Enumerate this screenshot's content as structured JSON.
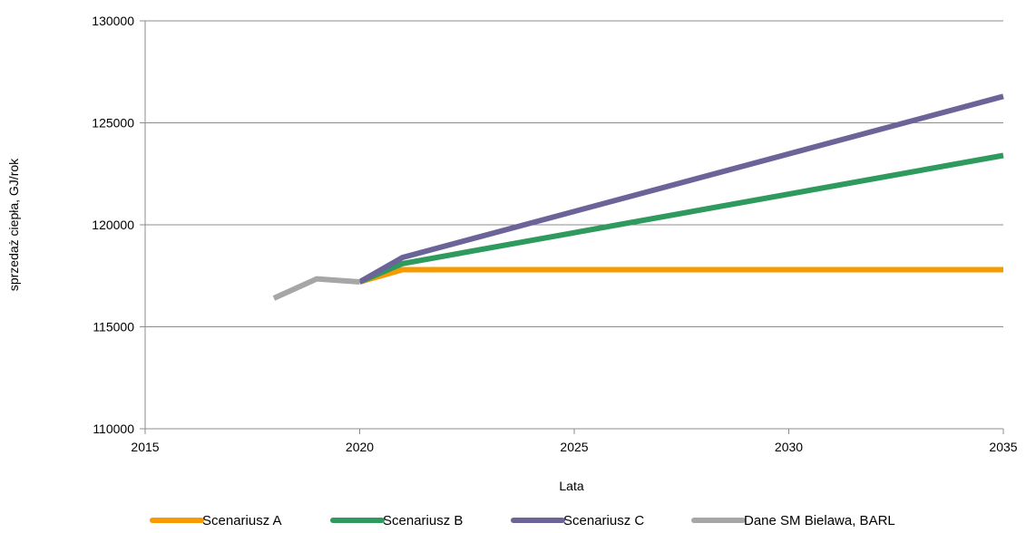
{
  "chart_data": {
    "type": "line",
    "title": "",
    "xlabel": "Lata",
    "ylabel": "sprzedaż ciepła, GJ/rok",
    "xlim": [
      2015,
      2035
    ],
    "ylim": [
      110000,
      130000
    ],
    "xticks": [
      2015,
      2020,
      2025,
      2030,
      2035
    ],
    "yticks": [
      110000,
      115000,
      120000,
      125000,
      130000
    ],
    "grid": "horizontal",
    "legend_position": "bottom",
    "series": [
      {
        "name": "Scenariusz A",
        "color": "#f79a00",
        "x": [
          2020,
          2021,
          2035
        ],
        "y": [
          117200,
          117800,
          117800
        ]
      },
      {
        "name": "Scenariusz B",
        "color": "#2f9a5e",
        "x": [
          2020,
          2021,
          2035
        ],
        "y": [
          117200,
          118100,
          123400
        ]
      },
      {
        "name": "Scenariusz C",
        "color": "#6b6499",
        "x": [
          2020,
          2021,
          2035
        ],
        "y": [
          117200,
          118400,
          126300
        ]
      },
      {
        "name": "Dane SM Bielawa, BARL",
        "color": "#a6a6a6",
        "x": [
          2018,
          2019,
          2020
        ],
        "y": [
          116400,
          117350,
          117200
        ]
      }
    ]
  }
}
